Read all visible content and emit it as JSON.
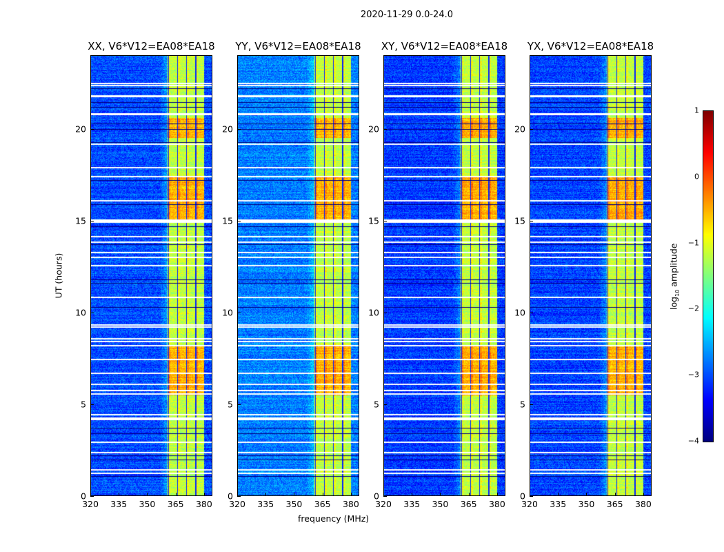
{
  "chart_data": {
    "type": "heatmap",
    "suptitle": "2020-11-29 0.0-24.0",
    "xlabel": "frequency (MHz)",
    "ylabel": "UT (hours)",
    "xlim": [
      320,
      384.4
    ],
    "ylim": [
      0,
      24
    ],
    "xticks": [
      "320",
      "335",
      "350",
      "365",
      "380"
    ],
    "yticks": [
      "0",
      "5",
      "10",
      "15",
      "20"
    ],
    "xtick_values": [
      320,
      335,
      350,
      365,
      380
    ],
    "ytick_values": [
      0,
      5,
      10,
      15,
      20
    ],
    "colormap": "jet",
    "colorbar": {
      "label_prefix": "log",
      "label_sub": "10",
      "label_suffix": " amplitude",
      "range": [
        -4,
        1
      ],
      "ticks": [
        "1",
        "0",
        "−1",
        "−2",
        "−3",
        "−4"
      ],
      "tick_values": [
        1,
        0,
        -1,
        -2,
        -3,
        -4
      ]
    },
    "band_mhz": [
      360.7,
      380.0
    ],
    "subband_count": 4,
    "background_level": -3.0,
    "flagged_hours": [
      22.48,
      22.4,
      21.84,
      21.78,
      20.86,
      20.8,
      19.21,
      17.9,
      17.41,
      16.1,
      15.05,
      14.97,
      14.93,
      14.15,
      13.85,
      13.28,
      13.02,
      12.57,
      10.84,
      9.34,
      9.23,
      8.59,
      8.44,
      8.22,
      7.47,
      6.72,
      6.12,
      5.78,
      5.59,
      4.47,
      4.28,
      4.22,
      2.96,
      2.4,
      1.46,
      1.28
    ],
    "dark_hours": [
      22.2,
      21.45,
      21.2,
      20.3,
      20.0,
      19.25,
      17.2,
      15.9,
      14.7,
      13.7,
      11.8,
      11.6,
      10.3,
      3.7,
      3.4,
      2.2,
      2.0,
      1.1
    ],
    "bright_periods_hours": [
      [
        5.5,
        8.2
      ],
      [
        15.0,
        17.4
      ],
      [
        19.5,
        20.6
      ]
    ],
    "panels": [
      {
        "title": "XX, V6*V12=EA08*EA18",
        "bg_offset": 0.0
      },
      {
        "title": "YY, V6*V12=EA08*EA18",
        "bg_offset": 0.25
      },
      {
        "title": "XY, V6*V12=EA08*EA18",
        "bg_offset": -0.1
      },
      {
        "title": "YX, V6*V12=EA08*EA18",
        "bg_offset": -0.05
      }
    ]
  }
}
